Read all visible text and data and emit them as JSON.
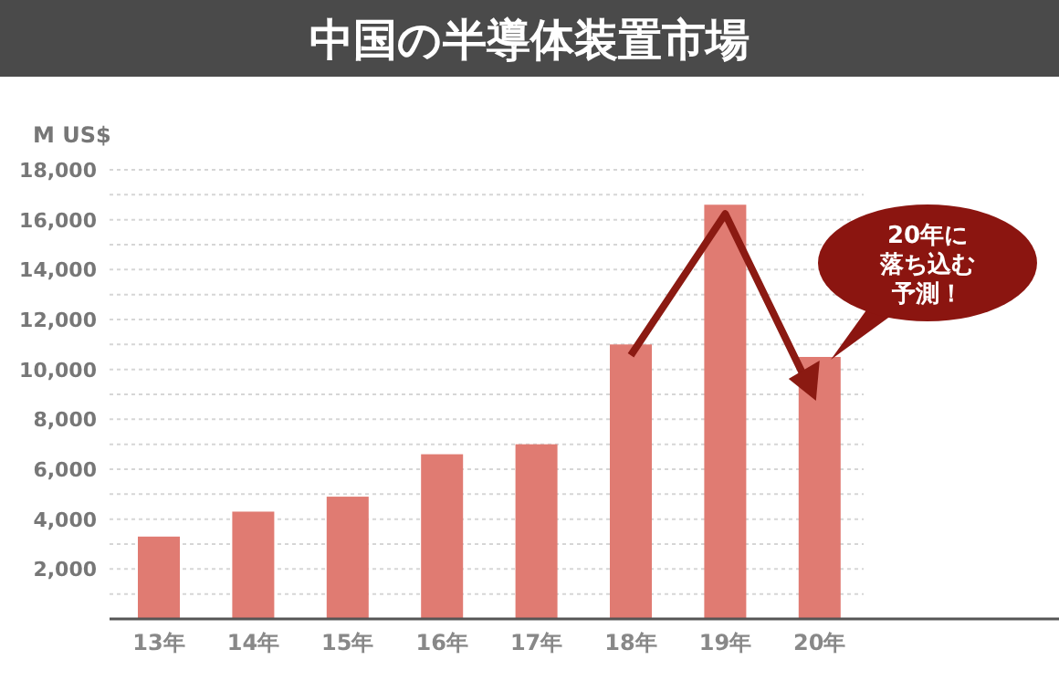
{
  "chart_data": {
    "type": "bar",
    "title": "中国の半導体装置市場",
    "ylabel": "M US$",
    "categories": [
      "13年",
      "14年",
      "15年",
      "16年",
      "17年",
      "18年",
      "19年",
      "20年"
    ],
    "values": [
      3300,
      4300,
      4900,
      6600,
      7000,
      11000,
      16600,
      10500
    ],
    "color": "#e07b72",
    "ylim": [
      0,
      18000
    ],
    "yticks": [
      {
        "value": 1000,
        "label": null
      },
      {
        "value": 2000,
        "label": "2,000"
      },
      {
        "value": 3000,
        "label": null
      },
      {
        "value": 4000,
        "label": "4,000"
      },
      {
        "value": 5000,
        "label": null
      },
      {
        "value": 6000,
        "label": "6,000"
      },
      {
        "value": 7000,
        "label": null
      },
      {
        "value": 8000,
        "label": "8,000"
      },
      {
        "value": 9000,
        "label": null
      },
      {
        "value": 10000,
        "label": "10,000"
      },
      {
        "value": 11000,
        "label": null
      },
      {
        "value": 12000,
        "label": "12,000"
      },
      {
        "value": 13000,
        "label": null
      },
      {
        "value": 14000,
        "label": "14,000"
      },
      {
        "value": 15000,
        "label": null
      },
      {
        "value": 16000,
        "label": "16,000"
      },
      {
        "value": 17000,
        "label": null
      },
      {
        "value": 18000,
        "label": "18,000"
      }
    ],
    "grid": "y",
    "annotations": [
      "20年に落ち込む予測！"
    ]
  }
}
